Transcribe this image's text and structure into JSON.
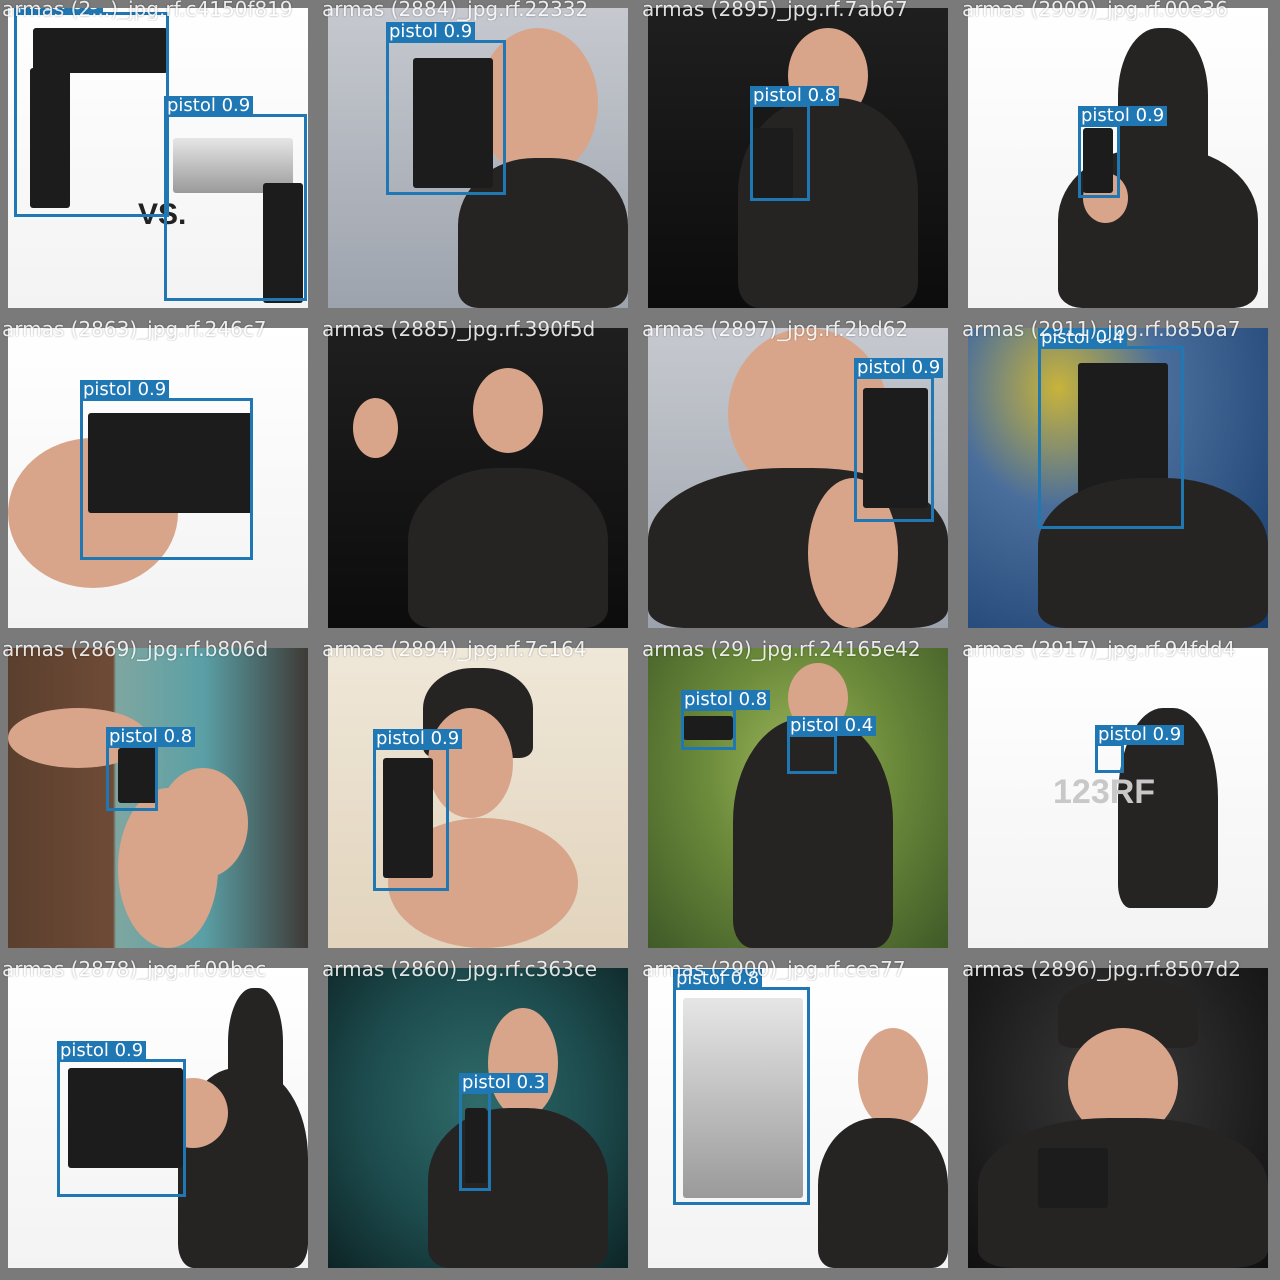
{
  "colors": {
    "grid_bg": "#7a7a7a",
    "box": "#1f77b4",
    "label_text": "#ffffff"
  },
  "cells": [
    {
      "filename": "armas (2...)_jpg.rf.c4150f819",
      "scene": "photo-light",
      "boxes": [
        {
          "label": "pistol 0.9"
        },
        {
          "label": "pistol 0.9"
        }
      ],
      "text": "VS."
    },
    {
      "filename": "armas (2884)_jpg.rf.22332",
      "scene": "photo-grey",
      "boxes": [
        {
          "label": "pistol 0.9"
        }
      ]
    },
    {
      "filename": "armas (2895)_jpg.rf.7ab67",
      "scene": "photo-dark",
      "boxes": [
        {
          "label": "pistol 0.8"
        }
      ]
    },
    {
      "filename": "armas (2909)_jpg.rf.00e36",
      "scene": "photo-light",
      "boxes": [
        {
          "label": "pistol 0.9"
        }
      ]
    },
    {
      "filename": "armas (2863)_jpg.rf.246c7",
      "scene": "photo-light",
      "boxes": [
        {
          "label": "pistol 0.9"
        }
      ]
    },
    {
      "filename": "armas (2885)_jpg.rf.390f5d",
      "scene": "photo-dark",
      "boxes": []
    },
    {
      "filename": "armas (2897)_jpg.rf.2bd62",
      "scene": "photo-grey",
      "boxes": [
        {
          "label": "pistol 0.9"
        }
      ]
    },
    {
      "filename": "armas (2911)_jpg.rf.b850a7",
      "scene": "photo-blue",
      "boxes": [
        {
          "label": "pistol 0.4"
        }
      ]
    },
    {
      "filename": "armas (2869)_jpg.rf.b806d",
      "scene": "photo-room",
      "boxes": [
        {
          "label": "pistol 0.8"
        }
      ]
    },
    {
      "filename": "armas (2894)_jpg.rf.7c164",
      "scene": "photo-cream",
      "boxes": [
        {
          "label": "pistol 0.9"
        }
      ]
    },
    {
      "filename": "armas (29)_jpg.rf.24165e42",
      "scene": "photo-forest",
      "boxes": [
        {
          "label": "pistol 0.8"
        },
        {
          "label": "pistol 0.4"
        }
      ]
    },
    {
      "filename": "armas (2917)_jpg.rf.94fdd4",
      "scene": "photo-light",
      "boxes": [
        {
          "label": "pistol 0.9"
        }
      ],
      "watermark": "123RF"
    },
    {
      "filename": "armas (2878)_jpg.rf.09bec",
      "scene": "photo-light",
      "boxes": [
        {
          "label": "pistol 0.9"
        }
      ]
    },
    {
      "filename": "armas (2860)_jpg.rf.c363ce",
      "scene": "photo-teal",
      "boxes": [
        {
          "label": "pistol 0.3"
        }
      ]
    },
    {
      "filename": "armas (2900)_jpg.rf.cea77",
      "scene": "photo-light",
      "boxes": [
        {
          "label": "pistol 0.8"
        }
      ]
    },
    {
      "filename": "armas (2896)_jpg.rf.8507d2",
      "scene": "photo-studio",
      "boxes": []
    }
  ]
}
